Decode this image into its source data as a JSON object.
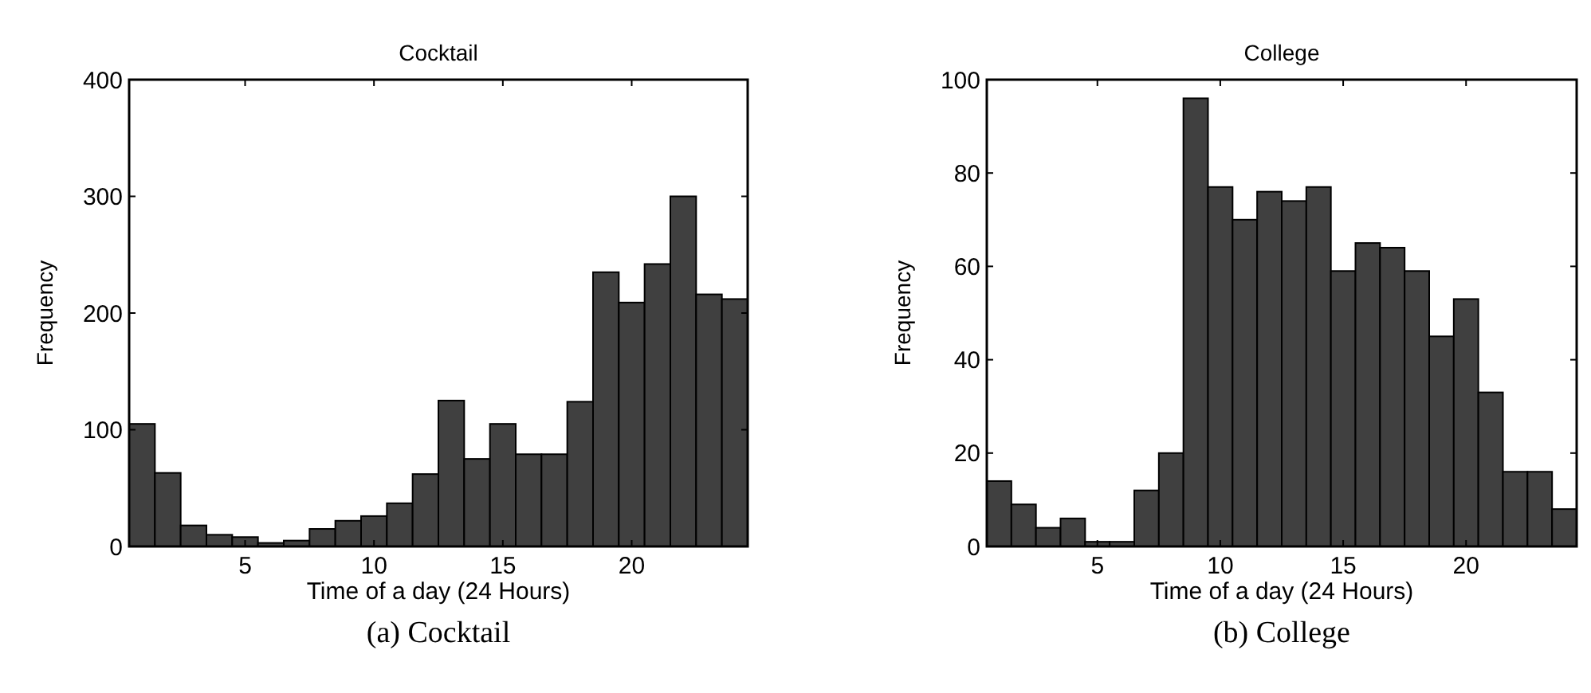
{
  "chart_data": [
    {
      "type": "histogram",
      "title": "Cocktail",
      "xlabel": "Time of a day (24 Hours)",
      "ylabel": "Frequency",
      "annotations": [
        "(a) Cocktail"
      ],
      "color": "#404040",
      "bins": [
        0.5,
        1.5,
        2.5,
        3.5,
        4.5,
        5.5,
        6.5,
        7.5,
        8.5,
        9.5,
        10.5,
        11.5,
        12.5,
        13.5,
        14.5,
        15.5,
        16.5,
        17.5,
        18.5,
        19.5,
        20.5,
        21.5,
        22.5,
        23.5,
        24.5
      ],
      "values": [
        105,
        63,
        18,
        10,
        8,
        3,
        5,
        15,
        22,
        26,
        37,
        62,
        125,
        75,
        105,
        79,
        79,
        124,
        235,
        209,
        242,
        300,
        216,
        212
      ],
      "xlim": [
        0.5,
        24.5
      ],
      "xticks": [
        5,
        10,
        15,
        20
      ],
      "ylim": [
        0,
        400
      ],
      "yticks": [
        0,
        100,
        200,
        300,
        400
      ]
    },
    {
      "type": "histogram",
      "title": "College",
      "xlabel": "Time of a day (24 Hours)",
      "ylabel": "Frequency",
      "annotations": [
        "(b) College"
      ],
      "color": "#404040",
      "bins": [
        0.5,
        1.5,
        2.5,
        3.5,
        4.5,
        5.5,
        6.5,
        7.5,
        8.5,
        9.5,
        10.5,
        11.5,
        12.5,
        13.5,
        14.5,
        15.5,
        16.5,
        17.5,
        18.5,
        19.5,
        20.5,
        21.5,
        22.5,
        23.5,
        24.5
      ],
      "values": [
        14,
        9,
        4,
        6,
        1,
        1,
        12,
        20,
        96,
        77,
        70,
        76,
        74,
        77,
        59,
        65,
        64,
        59,
        45,
        53,
        33,
        16,
        16,
        8
      ],
      "xlim": [
        0.5,
        24.5
      ],
      "xticks": [
        5,
        10,
        15,
        20
      ],
      "ylim": [
        0,
        100
      ],
      "yticks": [
        0,
        20,
        40,
        60,
        80,
        100
      ]
    }
  ]
}
